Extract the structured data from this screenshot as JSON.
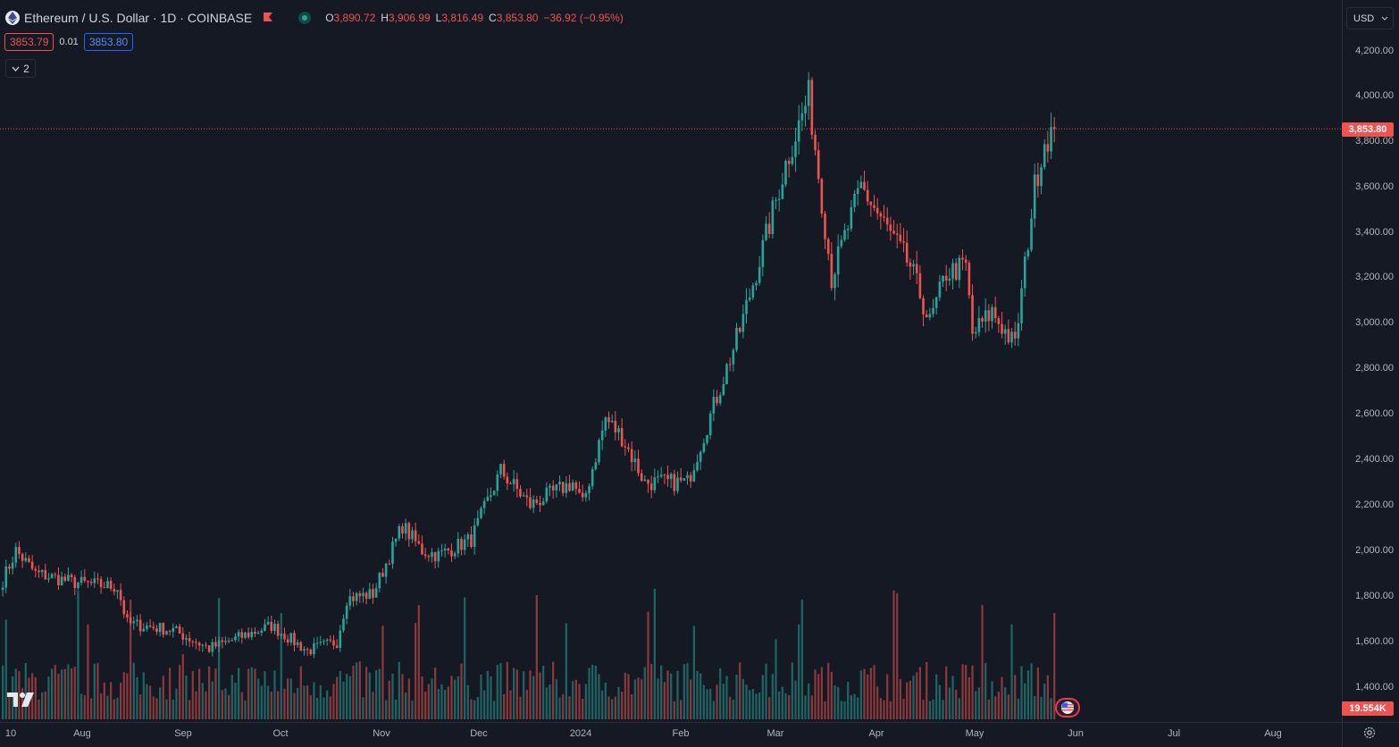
{
  "header": {
    "title": "Ethereum / U.S. Dollar · 1D · COINBASE",
    "ohlc": {
      "o_key": "O",
      "o_val": "3,890.72",
      "h_key": "H",
      "h_val": "3,906.99",
      "l_key": "L",
      "l_val": "3,816.49",
      "c_key": "C",
      "c_val": "3,853.80",
      "change": "−36.92 (−0.95%)"
    },
    "icons": [
      "ethereum-logo-icon",
      "flag-icon",
      "market-status-icon"
    ]
  },
  "quote": {
    "sell": "3853.79",
    "spread": "0.01",
    "buy": "3853.80"
  },
  "indicators_toggle": {
    "count": "2",
    "icon": "chevron-down-icon"
  },
  "currency": {
    "value": "USD",
    "icon": "chevron-down-icon"
  },
  "price_axis": {
    "ticks": [
      "4,200.00",
      "4,000.00",
      "3,800.00",
      "3,600.00",
      "3,400.00",
      "3,200.00",
      "3,000.00",
      "2,800.00",
      "2,600.00",
      "2,400.00",
      "2,200.00",
      "2,000.00",
      "1,800.00",
      "1,600.00",
      "1,400.00"
    ],
    "current_price": "3,853.80",
    "current_volume": "19.554K"
  },
  "time_axis": {
    "ticks": [
      "10",
      "Aug",
      "Sep",
      "Oct",
      "Nov",
      "Dec",
      "2024",
      "Feb",
      "Mar",
      "Apr",
      "May",
      "Jun",
      "Jul",
      "Aug"
    ]
  },
  "colors": {
    "up": "#26a69a",
    "down": "#ef5350",
    "background": "#151924",
    "grid": "#2a2e39"
  },
  "chart_data": {
    "type": "candlestick",
    "symbol": "ETHUSD",
    "interval": "1D",
    "ylim": [
      1300,
      4280
    ],
    "x_range": [
      "2023-07-10",
      "2024-08-31"
    ],
    "last_close": 3853.8,
    "anchors": [
      [
        "2023-07-10",
        1870
      ],
      [
        "2023-07-14",
        2000
      ],
      [
        "2023-07-20",
        1900
      ],
      [
        "2023-08-01",
        1860
      ],
      [
        "2023-08-14",
        1840
      ],
      [
        "2023-08-17",
        1680
      ],
      [
        "2023-08-31",
        1650
      ],
      [
        "2023-09-11",
        1570
      ],
      [
        "2023-09-30",
        1670
      ],
      [
        "2023-10-11",
        1560
      ],
      [
        "2023-10-20",
        1600
      ],
      [
        "2023-10-23",
        1790
      ],
      [
        "2023-10-31",
        1810
      ],
      [
        "2023-11-09",
        2110
      ],
      [
        "2023-11-15",
        2000
      ],
      [
        "2023-11-20",
        1980
      ],
      [
        "2023-11-30",
        2050
      ],
      [
        "2023-12-09",
        2350
      ],
      [
        "2023-12-18",
        2200
      ],
      [
        "2023-12-31",
        2300
      ],
      [
        "2024-01-03",
        2200
      ],
      [
        "2024-01-10",
        2580
      ],
      [
        "2024-01-15",
        2500
      ],
      [
        "2024-01-22",
        2300
      ],
      [
        "2024-02-04",
        2300
      ],
      [
        "2024-02-20",
        2970
      ],
      [
        "2024-02-28",
        3380
      ],
      [
        "2024-03-05",
        3700
      ],
      [
        "2024-03-12",
        4000
      ],
      [
        "2024-03-19",
        3200
      ],
      [
        "2024-03-28",
        3600
      ],
      [
        "2024-04-12",
        3250
      ],
      [
        "2024-04-18",
        3000
      ],
      [
        "2024-04-23",
        3220
      ],
      [
        "2024-04-29",
        3250
      ],
      [
        "2024-05-01",
        2950
      ],
      [
        "2024-05-07",
        3050
      ],
      [
        "2024-05-14",
        2900
      ],
      [
        "2024-05-20",
        3600
      ],
      [
        "2024-05-23",
        3800
      ],
      [
        "2024-05-26",
        3853.8
      ]
    ],
    "volume": {
      "ylim": [
        0,
        160
      ],
      "last": "19.554K"
    }
  }
}
